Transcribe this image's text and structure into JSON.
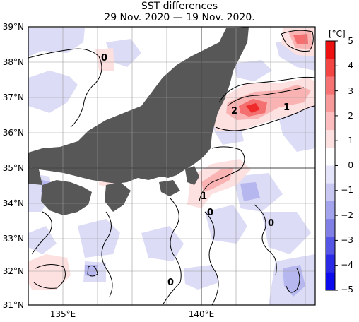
{
  "title": "SST differences",
  "subtitle": "29 Nov. 2020 — 19 Nov. 2020.",
  "unit": "[°C]",
  "colors": {
    "land": "#575757",
    "sea": "#ffffff",
    "grid": "#9a9a9a"
  },
  "lat_labels": [
    "39°N",
    "38°N",
    "37°N",
    "36°N",
    "35°N",
    "34°N",
    "33°N",
    "32°N",
    "31°N"
  ],
  "lon_labels": [
    "135°E",
    "140°E"
  ],
  "colorbar": {
    "ticks": [
      "5",
      "4",
      "3",
      "2",
      "1",
      "0",
      "−1",
      "−2",
      "−3",
      "−4",
      "−5"
    ],
    "colors": [
      "#ee1111",
      "#f44545",
      "#f77373",
      "#f99a9a",
      "#fbbdbd",
      "#fde0e0",
      "#ffffff",
      "#e4e4fb",
      "#c8c8f3",
      "#a4a4ee",
      "#7f7fe6",
      "#5555e6",
      "#2a2ae6",
      "#0b0bee"
    ]
  },
  "contour_labels": [
    "0",
    "2",
    "1",
    "1",
    "0",
    "0",
    "0"
  ]
}
